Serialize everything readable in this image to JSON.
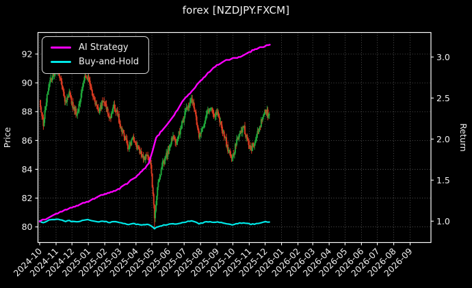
{
  "window": {
    "title": "forex [NZDJPY.FXCM]"
  },
  "legend": {
    "position": "upper-left",
    "items": [
      {
        "label": "AI Strategy",
        "color": "#ff00ff"
      },
      {
        "label": "Buy-and-Hold",
        "color": "#00e8e8"
      }
    ]
  },
  "chart_data": {
    "type": "candlestick+line",
    "title": "forex [NZDJPY.FXCM]",
    "background": "#000000",
    "grid": "dotted",
    "legend_position": "upper-left",
    "x_axis": {
      "tick_labels": [
        "2024-10",
        "2024-11",
        "2024-12",
        "2025-01",
        "2025-02",
        "2025-03",
        "2025-04",
        "2025-05",
        "2025-06",
        "2025-07",
        "2025-08",
        "2025-09",
        "2025-10",
        "2025-11",
        "2025-12",
        "2026-01",
        "2026-02",
        "2026-03",
        "2026-04",
        "2026-05",
        "2026-06",
        "2026-07",
        "2026-08",
        "2026-09"
      ],
      "tick_rotation_deg": 45,
      "data_start": "2024-10-01",
      "data_end": "2025-12-09"
    },
    "y_left": {
      "label": "Price",
      "ticks": [
        80,
        82,
        84,
        86,
        88,
        90,
        92
      ],
      "range": [
        78.9,
        93.5
      ]
    },
    "y_right": {
      "label": "Return",
      "ticks": [
        "1.0",
        "1.5",
        "2.0",
        "2.5",
        "3.0"
      ],
      "range": [
        0.74,
        3.3
      ]
    },
    "sample_dates": [
      "2024-10-01",
      "2024-10-08",
      "2024-10-15",
      "2024-10-22",
      "2024-10-29",
      "2024-11-05",
      "2024-11-12",
      "2024-11-19",
      "2024-11-26",
      "2024-12-03",
      "2024-12-10",
      "2024-12-17",
      "2024-12-24",
      "2024-12-31",
      "2025-01-07",
      "2025-01-14",
      "2025-01-21",
      "2025-01-28",
      "2025-02-04",
      "2025-02-11",
      "2025-02-18",
      "2025-02-25",
      "2025-03-04",
      "2025-03-11",
      "2025-03-18",
      "2025-03-25",
      "2025-04-01",
      "2025-04-08",
      "2025-04-15",
      "2025-04-22",
      "2025-04-29",
      "2025-05-06",
      "2025-05-13",
      "2025-05-20",
      "2025-05-27",
      "2025-06-03",
      "2025-06-10",
      "2025-06-17",
      "2025-06-24",
      "2025-07-01",
      "2025-07-08",
      "2025-07-15",
      "2025-07-22",
      "2025-07-29",
      "2025-08-05",
      "2025-08-12",
      "2025-08-19",
      "2025-08-26",
      "2025-09-02",
      "2025-09-09",
      "2025-09-16",
      "2025-09-23",
      "2025-09-30",
      "2025-10-07",
      "2025-10-14",
      "2025-10-21",
      "2025-10-28",
      "2025-11-04",
      "2025-11-11",
      "2025-11-18",
      "2025-11-25",
      "2025-12-02",
      "2025-12-09"
    ],
    "series": [
      {
        "name": "NZDJPY price candles",
        "type": "candlestick",
        "axis": "left",
        "up_color": "#1fa83a",
        "down_color": "#d93a21",
        "close": [
          88.8,
          87.0,
          89.2,
          90.3,
          90.7,
          90.9,
          89.8,
          88.7,
          89.4,
          88.2,
          87.8,
          88.9,
          90.2,
          90.5,
          89.5,
          88.5,
          87.9,
          88.7,
          88.2,
          87.6,
          88.5,
          87.8,
          86.9,
          86.1,
          85.4,
          86.2,
          85.7,
          85.1,
          84.7,
          85.0,
          84.3,
          80.6,
          83.1,
          84.2,
          84.8,
          85.5,
          86.3,
          85.9,
          86.8,
          87.6,
          88.4,
          88.9,
          88.0,
          86.2,
          86.9,
          87.8,
          88.2,
          87.7,
          88.0,
          87.1,
          86.2,
          85.3,
          84.8,
          85.7,
          86.5,
          86.9,
          86.2,
          85.4,
          85.8,
          86.6,
          87.4,
          88.0,
          87.8
        ],
        "extremes": {
          "high": 91.3,
          "high_date": "2024-11-05",
          "low": 79.9,
          "low_date": "2025-05-02"
        }
      },
      {
        "name": "AI Strategy",
        "type": "line",
        "axis": "right",
        "color": "#ff00ff",
        "dates": [
          "2024-10-01",
          "2024-10-15",
          "2024-11-01",
          "2024-11-15",
          "2024-12-01",
          "2024-12-15",
          "2025-01-01",
          "2025-01-15",
          "2025-02-01",
          "2025-02-15",
          "2025-03-01",
          "2025-03-15",
          "2025-04-01",
          "2025-04-15",
          "2025-04-25",
          "2025-05-02",
          "2025-05-09",
          "2025-05-20",
          "2025-06-01",
          "2025-06-15",
          "2025-07-01",
          "2025-07-15",
          "2025-08-01",
          "2025-08-15",
          "2025-09-01",
          "2025-09-15",
          "2025-10-01",
          "2025-10-15",
          "2025-11-01",
          "2025-11-15",
          "2025-12-01",
          "2025-12-10"
        ],
        "values": [
          1.0,
          1.03,
          1.09,
          1.13,
          1.17,
          1.2,
          1.24,
          1.29,
          1.33,
          1.36,
          1.4,
          1.46,
          1.54,
          1.63,
          1.7,
          1.85,
          2.02,
          2.1,
          2.2,
          2.32,
          2.49,
          2.58,
          2.71,
          2.8,
          2.9,
          2.95,
          2.98,
          3.0,
          3.06,
          3.1,
          3.13,
          3.15
        ]
      },
      {
        "name": "Buy-and-Hold",
        "type": "line",
        "axis": "right",
        "color": "#00e8e8",
        "values": [
          1.0,
          0.98,
          1.005,
          1.017,
          1.021,
          1.024,
          1.011,
          0.999,
          1.007,
          0.993,
          0.989,
          1.001,
          1.016,
          1.019,
          1.008,
          0.997,
          0.99,
          0.999,
          0.993,
          0.986,
          0.997,
          0.989,
          0.979,
          0.97,
          0.962,
          0.971,
          0.965,
          0.958,
          0.954,
          0.957,
          0.949,
          0.908,
          0.936,
          0.948,
          0.955,
          0.963,
          0.972,
          0.967,
          0.977,
          0.986,
          0.995,
          1.001,
          0.991,
          0.971,
          0.979,
          0.989,
          0.993,
          0.988,
          0.991,
          0.981,
          0.971,
          0.961,
          0.955,
          0.965,
          0.974,
          0.979,
          0.971,
          0.962,
          0.966,
          0.975,
          0.984,
          0.991,
          0.989
        ]
      }
    ]
  }
}
